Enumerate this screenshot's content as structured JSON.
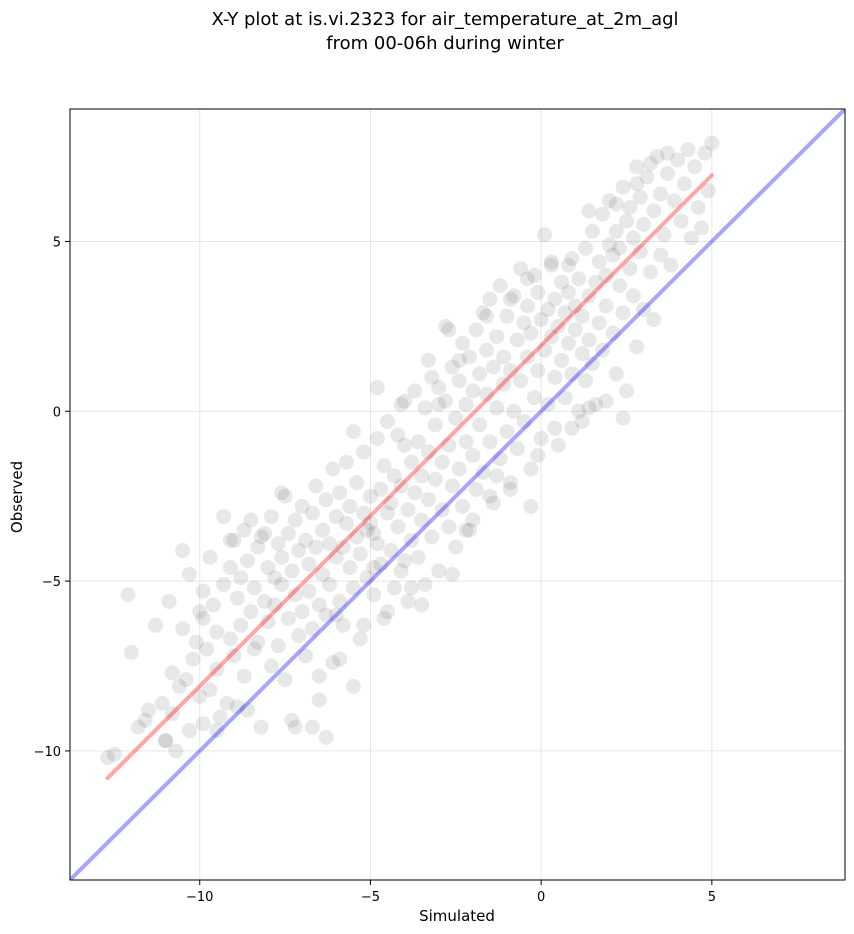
{
  "chart_data": {
    "type": "scatter",
    "title_lines": [
      "X-Y plot at is.vi.2323 for air_temperature_at_2m_agl",
      "from 00-06h during winter"
    ],
    "xlabel": "Simulated",
    "ylabel": "Observed",
    "xlim": [
      -13.8,
      8.9
    ],
    "ylim": [
      -13.8,
      8.9
    ],
    "xticks": [
      -10,
      -5,
      0,
      5
    ],
    "yticks": [
      -10,
      -5,
      0,
      5
    ],
    "xtick_labels": [
      "−10",
      "−5",
      "0",
      "5"
    ],
    "ytick_labels": [
      "−10",
      "−5",
      "0",
      "5"
    ],
    "grid": true,
    "point_color": "#000000",
    "point_alpha": 0.09,
    "identity_line": {
      "color": "#0000ff",
      "alpha": 0.35,
      "x": [
        -13.8,
        8.9
      ],
      "y": [
        -13.8,
        8.9
      ]
    },
    "fit_line": {
      "color": "#ff0000",
      "alpha": 0.35,
      "x": [
        -12.7,
        5.0
      ],
      "y": [
        -10.8,
        6.95
      ]
    },
    "points": [
      [
        -12.7,
        -10.2
      ],
      [
        -12.5,
        -10.1
      ],
      [
        -12.1,
        -5.4
      ],
      [
        -12.0,
        -7.1
      ],
      [
        -11.8,
        -9.3
      ],
      [
        -11.6,
        -9.1
      ],
      [
        -11.5,
        -8.8
      ],
      [
        -11.3,
        -6.3
      ],
      [
        -11.1,
        -8.6
      ],
      [
        -11.0,
        -9.7
      ],
      [
        -10.9,
        -5.6
      ],
      [
        -10.8,
        -8.9
      ],
      [
        -10.7,
        -10.0
      ],
      [
        -10.6,
        -8.1
      ],
      [
        -10.5,
        -4.1
      ],
      [
        -10.5,
        -6.4
      ],
      [
        -10.4,
        -7.9
      ],
      [
        -10.3,
        -9.4
      ],
      [
        -10.3,
        -4.8
      ],
      [
        -10.2,
        -7.3
      ],
      [
        -10.1,
        -6.8
      ],
      [
        -10.0,
        -8.4
      ],
      [
        -10.0,
        -5.9
      ],
      [
        -9.9,
        -9.2
      ],
      [
        -9.9,
        -6.1
      ],
      [
        -9.8,
        -7.0
      ],
      [
        -9.7,
        -4.3
      ],
      [
        -9.7,
        -8.2
      ],
      [
        -9.6,
        -5.7
      ],
      [
        -9.5,
        -6.5
      ],
      [
        -9.5,
        -7.6
      ],
      [
        -9.4,
        -9.0
      ],
      [
        -9.3,
        -3.1
      ],
      [
        -9.3,
        -5.1
      ],
      [
        -9.2,
        -8.6
      ],
      [
        -9.1,
        -6.7
      ],
      [
        -9.1,
        -4.6
      ],
      [
        -9.0,
        -7.2
      ],
      [
        -9.0,
        -3.8
      ],
      [
        -8.9,
        -5.5
      ],
      [
        -8.9,
        -8.7
      ],
      [
        -8.8,
        -4.9
      ],
      [
        -8.8,
        -6.3
      ],
      [
        -8.7,
        -3.5
      ],
      [
        -8.7,
        -7.8
      ],
      [
        -8.6,
        -4.4
      ],
      [
        -8.5,
        -5.9
      ],
      [
        -8.5,
        -3.2
      ],
      [
        -8.4,
        -7.0
      ],
      [
        -8.4,
        -5.2
      ],
      [
        -8.3,
        -4.0
      ],
      [
        -8.3,
        -6.8
      ],
      [
        -8.2,
        -3.7
      ],
      [
        -8.2,
        -9.3
      ],
      [
        -8.1,
        -5.6
      ],
      [
        -8.0,
        -4.6
      ],
      [
        -8.0,
        -6.2
      ],
      [
        -7.9,
        -3.1
      ],
      [
        -7.9,
        -7.5
      ],
      [
        -7.8,
        -4.9
      ],
      [
        -7.8,
        -5.7
      ],
      [
        -7.7,
        -3.9
      ],
      [
        -7.7,
        -6.9
      ],
      [
        -7.6,
        -4.3
      ],
      [
        -7.6,
        -5.1
      ],
      [
        -7.5,
        -2.5
      ],
      [
        -7.5,
        -7.9
      ],
      [
        -7.4,
        -3.6
      ],
      [
        -7.4,
        -6.1
      ],
      [
        -7.3,
        -4.7
      ],
      [
        -7.3,
        -9.1
      ],
      [
        -7.2,
        -5.4
      ],
      [
        -7.2,
        -3.2
      ],
      [
        -7.1,
        -6.6
      ],
      [
        -7.1,
        -4.1
      ],
      [
        -7.0,
        -2.8
      ],
      [
        -7.0,
        -5.9
      ],
      [
        -6.9,
        -3.8
      ],
      [
        -6.9,
        -7.2
      ],
      [
        -6.8,
        -4.5
      ],
      [
        -6.8,
        -5.3
      ],
      [
        -6.7,
        -3.0
      ],
      [
        -6.7,
        -6.4
      ],
      [
        -6.6,
        -2.2
      ],
      [
        -6.6,
        -4.0
      ],
      [
        -6.5,
        -5.7
      ],
      [
        -6.5,
        -8.5
      ],
      [
        -6.4,
        -3.5
      ],
      [
        -6.4,
        -4.8
      ],
      [
        -6.3,
        -2.6
      ],
      [
        -6.3,
        -6.0
      ],
      [
        -6.2,
        -3.9
      ],
      [
        -6.2,
        -5.1
      ],
      [
        -6.1,
        -1.7
      ],
      [
        -6.1,
        -7.4
      ],
      [
        -6.0,
        -4.3
      ],
      [
        -6.0,
        -3.1
      ],
      [
        -5.9,
        -5.6
      ],
      [
        -5.9,
        -2.4
      ],
      [
        -5.8,
        -4.0
      ],
      [
        -5.8,
        -6.3
      ],
      [
        -5.7,
        -3.3
      ],
      [
        -5.7,
        -1.5
      ],
      [
        -5.6,
        -4.6
      ],
      [
        -5.6,
        -2.8
      ],
      [
        -5.5,
        -5.2
      ],
      [
        -5.5,
        -8.1
      ],
      [
        -5.4,
        -3.7
      ],
      [
        -5.4,
        -2.1
      ],
      [
        -5.3,
        -4.2
      ],
      [
        -5.3,
        -6.7
      ],
      [
        -5.2,
        -3.0
      ],
      [
        -5.2,
        -1.2
      ],
      [
        -5.1,
        -3.5
      ],
      [
        -5.1,
        -4.9
      ],
      [
        -5.0,
        -3.3
      ],
      [
        -5.0,
        -2.5
      ],
      [
        -4.9,
        -3.6
      ],
      [
        -4.9,
        -5.4
      ],
      [
        -4.8,
        -0.8
      ],
      [
        -4.8,
        -3.9
      ],
      [
        -4.7,
        -2.3
      ],
      [
        -4.7,
        -4.5
      ],
      [
        -4.6,
        -1.6
      ],
      [
        -4.6,
        -6.1
      ],
      [
        -4.5,
        -3.0
      ],
      [
        -4.5,
        -0.3
      ],
      [
        -4.4,
        -2.7
      ],
      [
        -4.4,
        -4.1
      ],
      [
        -4.3,
        -1.9
      ],
      [
        -4.3,
        -5.2
      ],
      [
        -4.2,
        -0.7
      ],
      [
        -4.2,
        -3.4
      ],
      [
        -4.1,
        -2.2
      ],
      [
        -4.1,
        -4.7
      ],
      [
        -4.0,
        -1.0
      ],
      [
        -4.0,
        0.3
      ],
      [
        -3.9,
        -2.9
      ],
      [
        -3.9,
        -5.6
      ],
      [
        -3.8,
        -1.5
      ],
      [
        -3.8,
        -3.8
      ],
      [
        -3.7,
        0.6
      ],
      [
        -3.7,
        -2.4
      ],
      [
        -3.6,
        -4.3
      ],
      [
        -3.6,
        -0.9
      ],
      [
        -3.5,
        -1.9
      ],
      [
        -3.5,
        -3.2
      ],
      [
        -3.4,
        0.1
      ],
      [
        -3.4,
        -5.1
      ],
      [
        -3.3,
        -2.6
      ],
      [
        -3.3,
        -1.2
      ],
      [
        -3.2,
        1.0
      ],
      [
        -3.2,
        -3.7
      ],
      [
        -3.1,
        -0.4
      ],
      [
        -3.1,
        -2.0
      ],
      [
        -3.0,
        0.7
      ],
      [
        -3.0,
        -4.7
      ],
      [
        -2.9,
        -1.5
      ],
      [
        -2.9,
        -2.9
      ],
      [
        -2.8,
        0.3
      ],
      [
        -2.8,
        2.5
      ],
      [
        -2.7,
        -1.0
      ],
      [
        -2.7,
        -3.4
      ],
      [
        -2.6,
        1.3
      ],
      [
        -2.6,
        -2.2
      ],
      [
        -2.5,
        -0.2
      ],
      [
        -2.5,
        -4.0
      ],
      [
        -2.4,
        0.9
      ],
      [
        -2.4,
        -1.7
      ],
      [
        -2.3,
        2.0
      ],
      [
        -2.3,
        -2.8
      ],
      [
        -2.2,
        0.2
      ],
      [
        -2.2,
        -0.9
      ],
      [
        -2.1,
        1.6
      ],
      [
        -2.1,
        -3.5
      ],
      [
        -2.0,
        -1.3
      ],
      [
        -2.0,
        0.6
      ],
      [
        -1.9,
        2.4
      ],
      [
        -1.9,
        -2.3
      ],
      [
        -1.8,
        1.1
      ],
      [
        -1.8,
        -0.4
      ],
      [
        -1.7,
        2.9
      ],
      [
        -1.7,
        -1.8
      ],
      [
        -1.6,
        0.5
      ],
      [
        -1.6,
        1.8
      ],
      [
        -1.5,
        -0.9
      ],
      [
        -1.5,
        3.3
      ],
      [
        -1.4,
        1.3
      ],
      [
        -1.4,
        -2.7
      ],
      [
        -1.3,
        0.1
      ],
      [
        -1.3,
        2.2
      ],
      [
        -1.2,
        -1.4
      ],
      [
        -1.2,
        3.7
      ],
      [
        -1.1,
        0.8
      ],
      [
        -1.1,
        1.6
      ],
      [
        -1.0,
        -0.6
      ],
      [
        -1.0,
        2.8
      ],
      [
        -0.9,
        -2.1
      ],
      [
        -0.9,
        1.2
      ],
      [
        -0.8,
        3.4
      ],
      [
        -0.8,
        0.0
      ],
      [
        -0.7,
        2.1
      ],
      [
        -0.7,
        -1.1
      ],
      [
        -0.6,
        4.2
      ],
      [
        -0.6,
        0.9
      ],
      [
        -0.5,
        2.6
      ],
      [
        -0.5,
        -0.3
      ],
      [
        -0.4,
        3.1
      ],
      [
        -0.4,
        1.6
      ],
      [
        -0.3,
        -1.7
      ],
      [
        -0.3,
        2.3
      ],
      [
        -0.2,
        4.0
      ],
      [
        -0.2,
        0.4
      ],
      [
        -0.1,
        3.5
      ],
      [
        -0.1,
        1.2
      ],
      [
        0.0,
        2.7
      ],
      [
        0.0,
        -0.8
      ],
      [
        0.1,
        5.2
      ],
      [
        0.1,
        1.8
      ],
      [
        0.2,
        3.0
      ],
      [
        0.2,
        0.2
      ],
      [
        0.3,
        2.2
      ],
      [
        0.3,
        4.3
      ],
      [
        0.4,
        1.0
      ],
      [
        0.4,
        3.3
      ],
      [
        0.5,
        -1.0
      ],
      [
        0.5,
        2.5
      ],
      [
        0.6,
        3.8
      ],
      [
        0.6,
        1.5
      ],
      [
        0.7,
        2.9
      ],
      [
        0.7,
        0.4
      ],
      [
        0.8,
        3.5
      ],
      [
        0.8,
        2.0
      ],
      [
        0.9,
        4.5
      ],
      [
        0.9,
        1.1
      ],
      [
        1.0,
        3.1
      ],
      [
        1.0,
        2.4
      ],
      [
        1.1,
        0.0
      ],
      [
        1.1,
        3.9
      ],
      [
        1.2,
        1.7
      ],
      [
        1.2,
        2.8
      ],
      [
        1.3,
        4.8
      ],
      [
        1.3,
        0.9
      ],
      [
        1.4,
        3.4
      ],
      [
        1.4,
        2.1
      ],
      [
        1.5,
        5.3
      ],
      [
        1.5,
        1.4
      ],
      [
        1.6,
        3.8
      ],
      [
        1.6,
        0.2
      ],
      [
        1.7,
        4.4
      ],
      [
        1.7,
        2.6
      ],
      [
        1.8,
        5.8
      ],
      [
        1.8,
        1.8
      ],
      [
        1.9,
        4.0
      ],
      [
        1.9,
        3.1
      ],
      [
        2.0,
        4.9
      ],
      [
        2.0,
        6.2
      ],
      [
        2.1,
        2.3
      ],
      [
        2.1,
        4.6
      ],
      [
        2.2,
        5.3
      ],
      [
        2.2,
        1.1
      ],
      [
        2.3,
        3.7
      ],
      [
        2.3,
        4.8
      ],
      [
        2.4,
        6.6
      ],
      [
        2.4,
        2.9
      ],
      [
        2.5,
        5.6
      ],
      [
        2.5,
        0.6
      ],
      [
        2.6,
        4.2
      ],
      [
        2.6,
        6.0
      ],
      [
        2.7,
        3.4
      ],
      [
        2.7,
        5.1
      ],
      [
        2.8,
        7.2
      ],
      [
        2.8,
        1.9
      ],
      [
        2.9,
        4.7
      ],
      [
        2.9,
        6.3
      ],
      [
        3.0,
        3.0
      ],
      [
        3.0,
        5.5
      ],
      [
        3.1,
        6.9
      ],
      [
        3.2,
        4.1
      ],
      [
        3.3,
        2.7
      ],
      [
        3.3,
        5.9
      ],
      [
        3.4,
        7.5
      ],
      [
        3.5,
        4.6
      ],
      [
        3.5,
        6.4
      ],
      [
        3.6,
        5.2
      ],
      [
        3.7,
        7.0
      ],
      [
        3.8,
        4.3
      ],
      [
        3.9,
        6.2
      ],
      [
        4.0,
        7.4
      ],
      [
        4.1,
        5.6
      ],
      [
        4.2,
        6.7
      ],
      [
        4.4,
        5.1
      ],
      [
        4.5,
        7.2
      ],
      [
        4.6,
        6.0
      ],
      [
        4.8,
        7.6
      ],
      [
        4.9,
        6.5
      ],
      [
        5.0,
        7.9
      ],
      [
        4.7,
        5.4
      ],
      [
        4.3,
        7.7
      ],
      [
        3.2,
        7.3
      ],
      [
        -11.0,
        -9.7
      ],
      [
        -10.8,
        -7.7
      ],
      [
        -9.5,
        -9.4
      ],
      [
        -8.6,
        -8.8
      ],
      [
        -7.2,
        -9.3
      ],
      [
        -6.7,
        -9.3
      ],
      [
        -6.3,
        -9.6
      ],
      [
        -6.5,
        -7.8
      ],
      [
        -5.9,
        -7.3
      ],
      [
        -5.2,
        -6.3
      ],
      [
        -4.5,
        -5.9
      ],
      [
        -3.8,
        -5.2
      ],
      [
        -3.5,
        -5.7
      ],
      [
        -2.6,
        -4.8
      ],
      [
        -2.2,
        -3.5
      ],
      [
        -1.5,
        -2.5
      ],
      [
        -0.9,
        -2.3
      ],
      [
        -0.1,
        -1.3
      ],
      [
        0.4,
        -0.5
      ],
      [
        1.2,
        -0.3
      ],
      [
        1.9,
        0.3
      ],
      [
        2.4,
        -0.2
      ],
      [
        1.4,
        0.1
      ],
      [
        0.9,
        -0.5
      ],
      [
        -0.3,
        -2.8
      ],
      [
        -1.3,
        -1.9
      ],
      [
        -2.0,
        -3.2
      ],
      [
        -4.0,
        -4.4
      ],
      [
        -4.9,
        -4.6
      ],
      [
        -6.0,
        -6.0
      ],
      [
        -3.0,
        0.2
      ],
      [
        -2.4,
        1.5
      ],
      [
        -1.6,
        2.8
      ],
      [
        -0.9,
        3.3
      ],
      [
        -0.4,
        3.9
      ],
      [
        0.3,
        4.4
      ],
      [
        0.8,
        4.3
      ],
      [
        1.4,
        5.9
      ],
      [
        2.2,
        6.1
      ],
      [
        2.8,
        6.7
      ],
      [
        3.7,
        7.6
      ],
      [
        -7.6,
        -2.4
      ],
      [
        -8.1,
        -3.6
      ],
      [
        -9.1,
        -3.8
      ],
      [
        -9.9,
        -5.3
      ],
      [
        -5.5,
        -0.6
      ],
      [
        -4.8,
        0.7
      ],
      [
        -4.1,
        0.2
      ],
      [
        -3.3,
        1.5
      ],
      [
        -2.7,
        2.4
      ]
    ]
  }
}
